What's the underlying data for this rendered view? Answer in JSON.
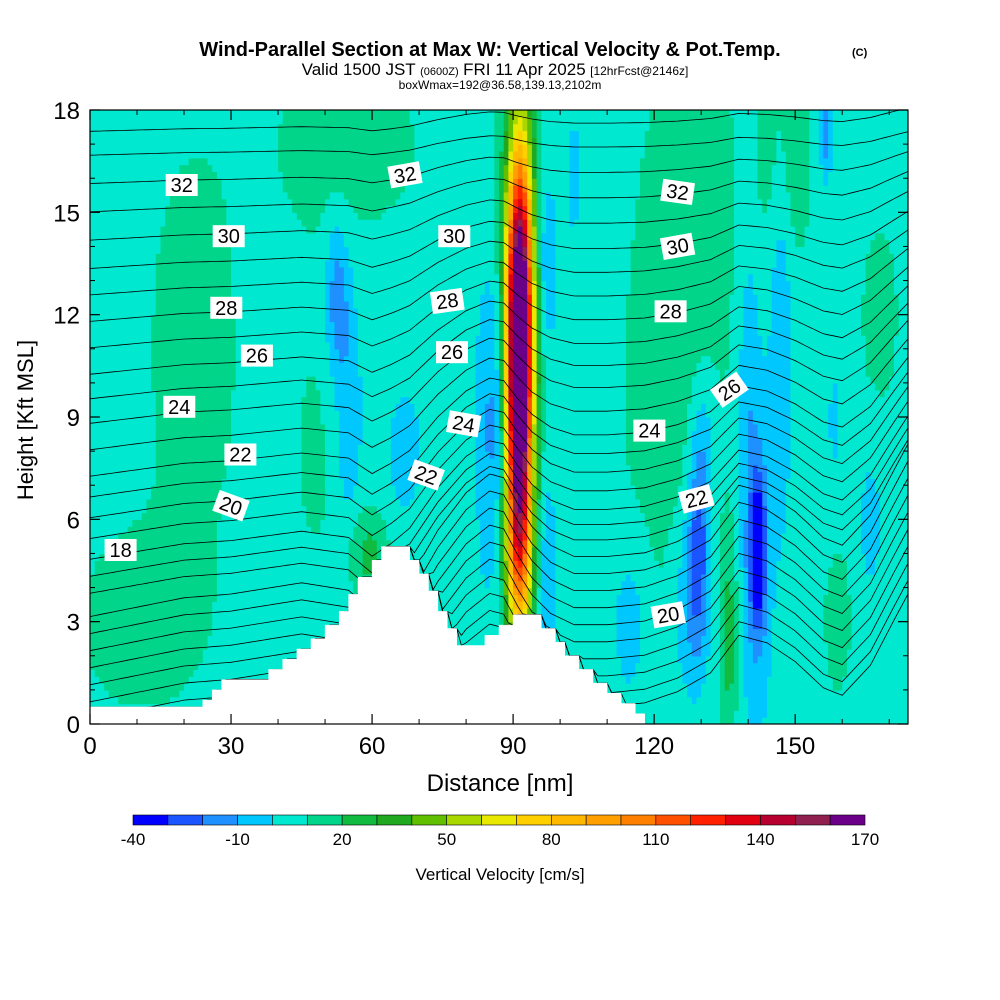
{
  "header": {
    "title": "Wind-Parallel Section at Max W: Vertical Velocity & Pot.Temp.",
    "title_mark": "(C)",
    "valid_prefix": "Valid 1500 JST",
    "valid_utc": "(0600Z)",
    "valid_date": "FRI 11 Apr 2025",
    "forecast": "[12hrFcst@2146z]",
    "boxinfo": "boxWmax=192@36.58,139.13,2102m"
  },
  "chart_data": {
    "type": "heatmap",
    "xlabel": "Distance [nm]",
    "ylabel": "Height [Kft MSL]",
    "xlim": [
      0,
      174
    ],
    "ylim": [
      0,
      18
    ],
    "x_ticks": [
      0,
      30,
      60,
      90,
      120,
      150
    ],
    "x_tick_labels": [
      "0",
      "30",
      "60",
      "90",
      "120",
      "150"
    ],
    "y_ticks": [
      0,
      3,
      6,
      9,
      12,
      15,
      18
    ],
    "y_tick_labels": [
      "0",
      "3",
      "6",
      "9",
      "12",
      "15",
      "18"
    ],
    "colorbar": {
      "label": "Vertical Velocity [cm/s]",
      "levels": [
        -40,
        -30,
        -20,
        -10,
        0,
        10,
        20,
        30,
        40,
        50,
        60,
        70,
        80,
        90,
        100,
        110,
        120,
        130,
        140,
        150,
        160,
        170
      ],
      "tick_values": [
        -40,
        -10,
        20,
        50,
        80,
        110,
        140,
        170
      ],
      "tick_labels": [
        "-40",
        "-10",
        "20",
        "50",
        "80",
        "110",
        "140",
        "170"
      ],
      "colors": [
        "#0000ff",
        "#1a55ff",
        "#1e90ff",
        "#00c8ff",
        "#00e8d0",
        "#00d58a",
        "#10bb40",
        "#20a820",
        "#60c000",
        "#a8d800",
        "#e8e800",
        "#ffd000",
        "#ffb800",
        "#ffa000",
        "#ff8000",
        "#ff5000",
        "#ff2000",
        "#e00010",
        "#b80030",
        "#902050",
        "#6a0088"
      ]
    },
    "background_value": 5,
    "terrain": [
      [
        0,
        0.5
      ],
      [
        10,
        0.5
      ],
      [
        22,
        0.5
      ],
      [
        24,
        0.5
      ],
      [
        24,
        0.7
      ],
      [
        26,
        0.7
      ],
      [
        26,
        1.0
      ],
      [
        28,
        1.0
      ],
      [
        28,
        1.3
      ],
      [
        38,
        1.3
      ],
      [
        38,
        1.6
      ],
      [
        41,
        1.6
      ],
      [
        41,
        1.9
      ],
      [
        44,
        1.9
      ],
      [
        44,
        2.2
      ],
      [
        47,
        2.2
      ],
      [
        47,
        2.5
      ],
      [
        50,
        2.5
      ],
      [
        50,
        2.9
      ],
      [
        53,
        2.9
      ],
      [
        53,
        3.3
      ],
      [
        55,
        3.3
      ],
      [
        55,
        3.8
      ],
      [
        57,
        3.8
      ],
      [
        57,
        4.3
      ],
      [
        60,
        4.3
      ],
      [
        60,
        4.8
      ],
      [
        62,
        4.8
      ],
      [
        62,
        5.2
      ],
      [
        68,
        5.2
      ],
      [
        68,
        4.8
      ],
      [
        70,
        4.8
      ],
      [
        70,
        4.4
      ],
      [
        72,
        4.4
      ],
      [
        72,
        3.9
      ],
      [
        74,
        3.9
      ],
      [
        74,
        3.3
      ],
      [
        76,
        3.3
      ],
      [
        76,
        2.8
      ],
      [
        78,
        2.8
      ],
      [
        78,
        2.3
      ],
      [
        84,
        2.3
      ],
      [
        84,
        2.6
      ],
      [
        87,
        2.6
      ],
      [
        87,
        2.9
      ],
      [
        90,
        2.9
      ],
      [
        90,
        3.2
      ],
      [
        96,
        3.2
      ],
      [
        96,
        2.8
      ],
      [
        99,
        2.8
      ],
      [
        99,
        2.4
      ],
      [
        101,
        2.4
      ],
      [
        101,
        2.0
      ],
      [
        104,
        2.0
      ],
      [
        104,
        1.6
      ],
      [
        107,
        1.6
      ],
      [
        107,
        1.2
      ],
      [
        110,
        1.2
      ],
      [
        110,
        0.9
      ],
      [
        113,
        0.9
      ],
      [
        113,
        0.6
      ],
      [
        116,
        0.6
      ],
      [
        116,
        0.3
      ],
      [
        118,
        0.3
      ],
      [
        118,
        0
      ],
      [
        174,
        0
      ]
    ],
    "updrafts": [
      {
        "x": 91.2,
        "y": 10.5,
        "sx": 1.8,
        "sy": 4.0,
        "value": 165
      },
      {
        "x": 91.5,
        "y": 8.5,
        "sx": 2.4,
        "sy": 5.5,
        "value": 45
      },
      {
        "x": 92.5,
        "y": 13.5,
        "sx": 2.6,
        "sy": 3.0,
        "value": 35
      },
      {
        "x": 91.0,
        "y": 5.0,
        "sx": 2.2,
        "sy": 1.6,
        "value": 30
      },
      {
        "x": 59.0,
        "y": 5.0,
        "sx": 3.0,
        "sy": 0.9,
        "value": 18
      },
      {
        "x": 136.0,
        "y": 2.5,
        "sx": 1.3,
        "sy": 2.2,
        "value": 20
      },
      {
        "x": 159.0,
        "y": 3.0,
        "sx": 2.0,
        "sy": 1.5,
        "value": 12
      },
      {
        "x": 129.0,
        "y": 14.0,
        "sx": 8.0,
        "sy": 6.0,
        "value": 9
      },
      {
        "x": 148.0,
        "y": 16.5,
        "sx": 4.0,
        "sy": 2.5,
        "value": 12
      },
      {
        "x": 55.0,
        "y": 17.0,
        "sx": 12.0,
        "sy": 2.0,
        "value": 10
      },
      {
        "x": 22.0,
        "y": 11.0,
        "sx": 8.0,
        "sy": 5.0,
        "value": 9
      },
      {
        "x": 10.0,
        "y": 3.0,
        "sx": 10.0,
        "sy": 2.0,
        "value": 10
      },
      {
        "x": 120.0,
        "y": 8.0,
        "sx": 7.0,
        "sy": 6.0,
        "value": 6
      },
      {
        "x": 48.0,
        "y": 8.0,
        "sx": 5.0,
        "sy": 4.0,
        "value": 6
      },
      {
        "x": 168.0,
        "y": 12.0,
        "sx": 6.0,
        "sy": 4.0,
        "value": 6
      },
      {
        "x": 88.0,
        "y": 15.0,
        "sx": 4.0,
        "sy": 3.0,
        "value": 5
      }
    ],
    "downdrafts": [
      {
        "x": 86.0,
        "y": 9.0,
        "sx": 2.5,
        "sy": 3.5,
        "value": -20
      },
      {
        "x": 96.5,
        "y": 13.5,
        "sx": 1.8,
        "sy": 2.0,
        "value": -22
      },
      {
        "x": 97.0,
        "y": 4.0,
        "sx": 1.5,
        "sy": 2.5,
        "value": -15
      },
      {
        "x": 52.5,
        "y": 12.5,
        "sx": 1.8,
        "sy": 1.6,
        "value": -22
      },
      {
        "x": 55.0,
        "y": 9.0,
        "sx": 2.0,
        "sy": 2.5,
        "value": -14
      },
      {
        "x": 67.0,
        "y": 8.0,
        "sx": 2.5,
        "sy": 1.2,
        "value": -12
      },
      {
        "x": 115.0,
        "y": 3.0,
        "sx": 3.0,
        "sy": 1.8,
        "value": -12
      },
      {
        "x": 129.5,
        "y": 5.3,
        "sx": 1.6,
        "sy": 2.2,
        "value": -32
      },
      {
        "x": 127.0,
        "y": 3.5,
        "sx": 2.5,
        "sy": 2.0,
        "value": -14
      },
      {
        "x": 142.0,
        "y": 5.0,
        "sx": 1.2,
        "sy": 1.5,
        "value": -45
      },
      {
        "x": 141.5,
        "y": 5.5,
        "sx": 2.5,
        "sy": 4.0,
        "value": -16
      },
      {
        "x": 147.0,
        "y": 12.0,
        "sx": 1.6,
        "sy": 4.0,
        "value": -16
      },
      {
        "x": 140.0,
        "y": 11.0,
        "sx": 1.5,
        "sy": 2.5,
        "value": -10
      },
      {
        "x": 131.0,
        "y": 8.5,
        "sx": 2.0,
        "sy": 1.5,
        "value": -10
      },
      {
        "x": 166.0,
        "y": 6.0,
        "sx": 1.5,
        "sy": 1.2,
        "value": -15
      },
      {
        "x": 156.5,
        "y": 17.5,
        "sx": 1.0,
        "sy": 1.0,
        "value": -25
      },
      {
        "x": 158.5,
        "y": 9.0,
        "sx": 1.5,
        "sy": 1.5,
        "value": -8
      },
      {
        "x": 103.0,
        "y": 16.0,
        "sx": 1.5,
        "sy": 1.5,
        "value": -8
      }
    ],
    "theta_base": [
      [
        0,
        -1.5
      ],
      [
        20,
        -1.0
      ],
      [
        30,
        -0.9
      ],
      [
        45,
        -0.6
      ],
      [
        55,
        -0.8
      ],
      [
        60,
        -1.4
      ],
      [
        64,
        -1.0
      ],
      [
        68,
        -0.5
      ],
      [
        74,
        0.8
      ],
      [
        80,
        1.8
      ],
      [
        85,
        2.3
      ],
      [
        88,
        2.2
      ],
      [
        91,
        1.5
      ],
      [
        94,
        0.9
      ],
      [
        98,
        0.4
      ],
      [
        103,
        0.1
      ],
      [
        110,
        0.1
      ],
      [
        118,
        0.2
      ],
      [
        125,
        0.5
      ],
      [
        132,
        1.0
      ],
      [
        138,
        2.0
      ],
      [
        144,
        1.8
      ],
      [
        150,
        1.3
      ],
      [
        156,
        0.6
      ],
      [
        160,
        0.4
      ],
      [
        166,
        1.2
      ],
      [
        171,
        2.4
      ],
      [
        174,
        3.1
      ]
    ],
    "theta_levels": [
      {
        "theta": 18,
        "y": 5.3
      },
      {
        "theta": 19,
        "y": 5.75
      },
      {
        "theta": 20,
        "y": 6.2
      },
      {
        "theta": 21,
        "y": 6.75
      },
      {
        "theta": 22,
        "y": 7.3
      },
      {
        "theta": 23,
        "y": 7.85
      },
      {
        "theta": 24,
        "y": 8.4
      },
      {
        "theta": 25,
        "y": 9.1
      },
      {
        "theta": 26,
        "y": 9.8
      },
      {
        "theta": 27,
        "y": 10.45
      },
      {
        "theta": 28,
        "y": 11.1
      },
      {
        "theta": 29,
        "y": 11.8
      },
      {
        "theta": 30,
        "y": 12.5
      },
      {
        "theta": 31,
        "y": 13.2
      },
      {
        "theta": 32,
        "y": 13.9
      },
      {
        "theta": 33,
        "y": 14.65
      },
      {
        "theta": 34,
        "y": 15.4
      },
      {
        "theta": 35,
        "y": 16.15
      },
      {
        "theta": 36,
        "y": 16.9
      },
      {
        "theta": 37,
        "y": 17.6
      },
      {
        "theta": 38,
        "y": 18.3
      }
    ],
    "theta_lower_lines": [
      0.4,
      0.8,
      1.3,
      1.8,
      2.3,
      2.8,
      3.3,
      3.8,
      4.3,
      4.8
    ],
    "theta_labels": [
      {
        "text": "32",
        "x": 19.5,
        "y": 15.8,
        "rot": 0
      },
      {
        "text": "30",
        "x": 29.5,
        "y": 14.3,
        "rot": 0
      },
      {
        "text": "28",
        "x": 29.0,
        "y": 12.2,
        "rot": 0
      },
      {
        "text": "26",
        "x": 35.5,
        "y": 10.8,
        "rot": 0
      },
      {
        "text": "24",
        "x": 19.0,
        "y": 9.3,
        "rot": 0
      },
      {
        "text": "22",
        "x": 32.0,
        "y": 7.9,
        "rot": 0
      },
      {
        "text": "20",
        "x": 30.0,
        "y": 6.4,
        "rot": 20
      },
      {
        "text": "18",
        "x": 6.5,
        "y": 5.1,
        "rot": 0
      },
      {
        "text": "32",
        "x": 67.0,
        "y": 16.1,
        "rot": -10
      },
      {
        "text": "30",
        "x": 77.5,
        "y": 14.3,
        "rot": 0
      },
      {
        "text": "28",
        "x": 76.0,
        "y": 12.4,
        "rot": -8
      },
      {
        "text": "26",
        "x": 77.0,
        "y": 10.9,
        "rot": 0
      },
      {
        "text": "24",
        "x": 79.5,
        "y": 8.8,
        "rot": 10
      },
      {
        "text": "22",
        "x": 71.5,
        "y": 7.3,
        "rot": 20
      },
      {
        "text": "32",
        "x": 125.0,
        "y": 15.6,
        "rot": 8
      },
      {
        "text": "30",
        "x": 125.0,
        "y": 14.0,
        "rot": -10
      },
      {
        "text": "28",
        "x": 123.5,
        "y": 12.1,
        "rot": 0
      },
      {
        "text": "26",
        "x": 136.0,
        "y": 9.8,
        "rot": -35
      },
      {
        "text": "24",
        "x": 119.0,
        "y": 8.6,
        "rot": 0
      },
      {
        "text": "22",
        "x": 129.0,
        "y": 6.6,
        "rot": -15
      },
      {
        "text": "20",
        "x": 123.0,
        "y": 3.2,
        "rot": -10
      }
    ]
  }
}
